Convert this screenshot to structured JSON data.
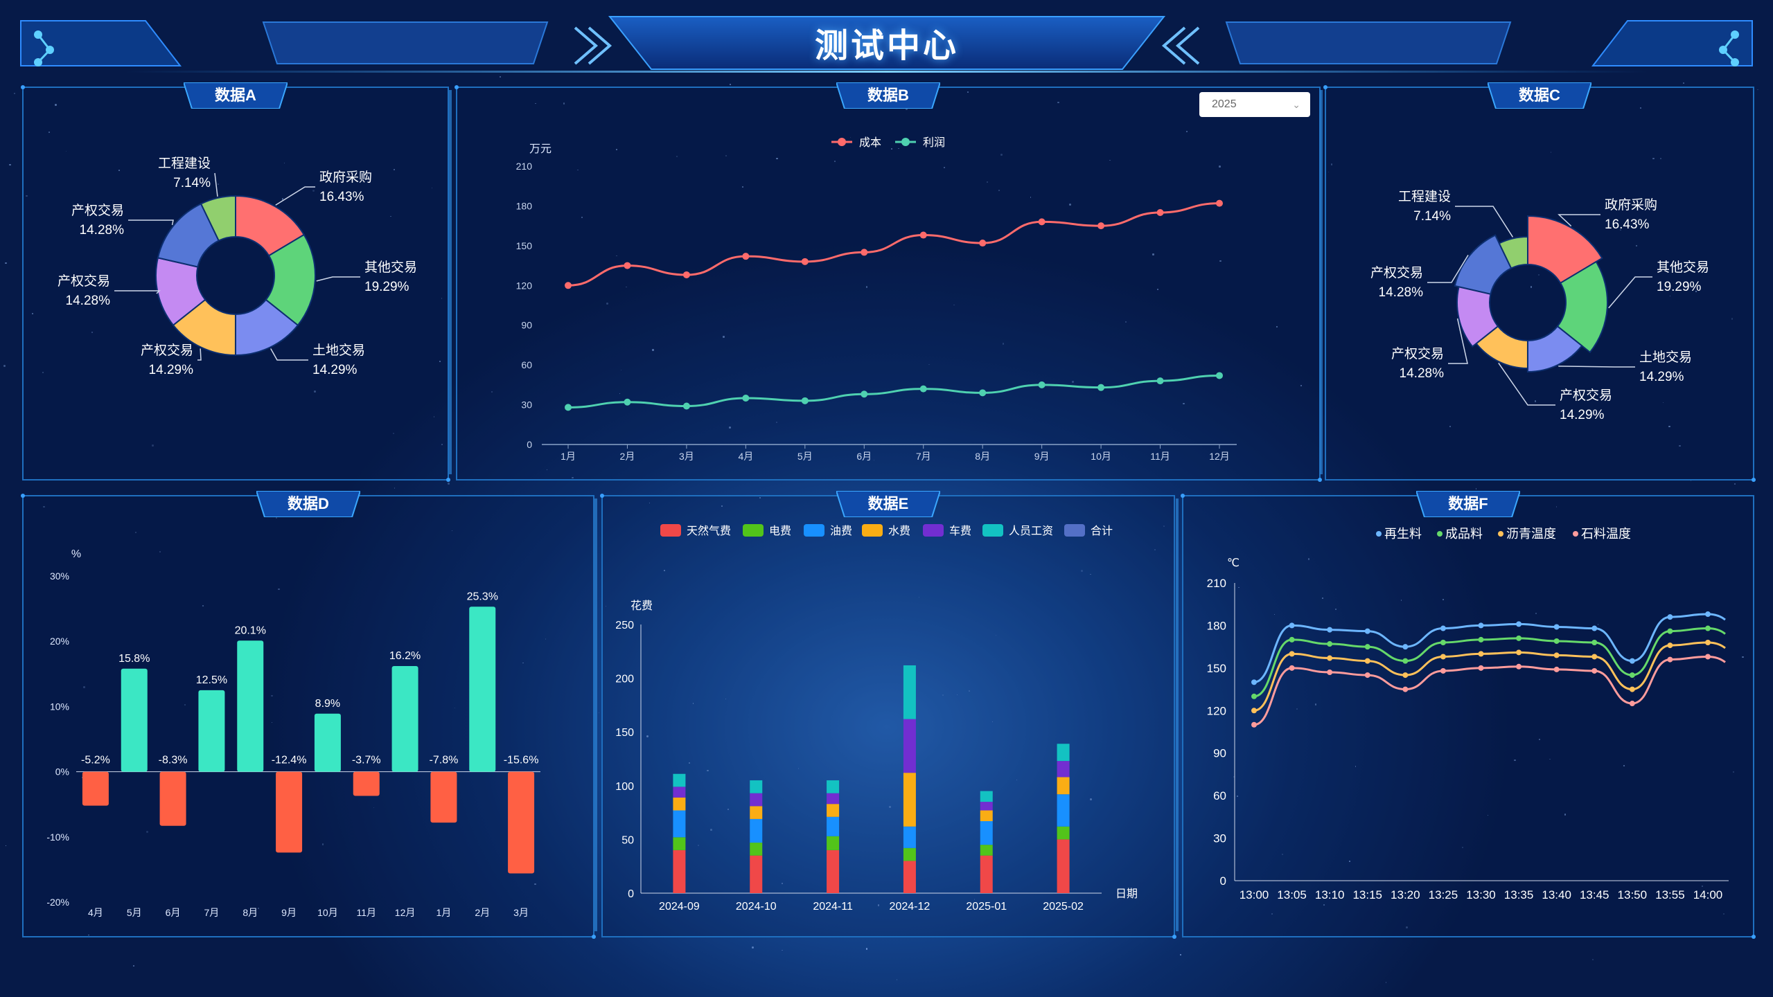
{
  "header": {
    "title": "测试中心"
  },
  "panels": {
    "a": "数据A",
    "b": "数据B",
    "c": "数据C",
    "d": "数据D",
    "e": "数据E",
    "f": "数据F"
  },
  "year_select": {
    "value": "2025"
  },
  "colors": {
    "pie": [
      "#ff7070",
      "#5ed47a",
      "#7b8cf0",
      "#ffc15a",
      "#c48af2",
      "#5577d6",
      "#91cf6e"
    ],
    "cost": "#ff6b6b",
    "profit": "#4fd1b0",
    "positive": "#3be7c4",
    "negative": "#ff6044",
    "stack": [
      "#f04848",
      "#52c41a",
      "#1890ff",
      "#faad14",
      "#722ed1",
      "#13c2c2",
      "#5470c6"
    ],
    "lines": [
      "#6db6ff",
      "#66d96a",
      "#ffc15a",
      "#ff9c9c"
    ]
  },
  "chart_data": [
    {
      "id": "A",
      "type": "pie",
      "labels": [
        "政府采购",
        "其他交易",
        "土地交易",
        "产权交易",
        "产权交易",
        "产权交易",
        "工程建设"
      ],
      "values": [
        16.43,
        19.29,
        14.29,
        14.29,
        14.28,
        14.28,
        7.14
      ],
      "value_labels": [
        "16.43%",
        "19.29%",
        "14.29%",
        "14.29%",
        "14.28%",
        "14.28%",
        "7.14%"
      ]
    },
    {
      "id": "B",
      "type": "line",
      "categories": [
        "1月",
        "2月",
        "3月",
        "4月",
        "5月",
        "6月",
        "7月",
        "8月",
        "9月",
        "10月",
        "11月",
        "12月"
      ],
      "series": [
        {
          "name": "成本",
          "values": [
            120,
            135,
            128,
            142,
            138,
            145,
            158,
            152,
            168,
            165,
            175,
            182
          ]
        },
        {
          "name": "利润",
          "values": [
            28,
            32,
            29,
            35,
            33,
            38,
            42,
            39,
            45,
            43,
            48,
            52
          ]
        }
      ],
      "ylabel": "万元",
      "ylim": [
        0,
        210
      ],
      "yticks": [
        "0",
        "30",
        "60",
        "90",
        "120",
        "150",
        "180",
        "210"
      ]
    },
    {
      "id": "C",
      "type": "pie",
      "labels": [
        "政府采购",
        "其他交易",
        "土地交易",
        "产权交易",
        "产权交易",
        "产权交易",
        "工程建设"
      ],
      "values": [
        16.43,
        19.29,
        14.29,
        14.29,
        14.28,
        14.28,
        7.14
      ],
      "value_labels": [
        "16.43%",
        "19.29%",
        "14.29%",
        "14.29%",
        "14.28%",
        "14.28%",
        "7.14%"
      ]
    },
    {
      "id": "D",
      "type": "bar",
      "categories": [
        "4月",
        "5月",
        "6月",
        "7月",
        "8月",
        "9月",
        "10月",
        "11月",
        "12月",
        "1月",
        "2月",
        "3月"
      ],
      "values": [
        -5.2,
        15.8,
        -8.3,
        12.5,
        20.1,
        -12.4,
        8.9,
        -3.7,
        16.2,
        -7.8,
        25.3,
        -15.6
      ],
      "value_labels": [
        "-5.2%",
        "15.8%",
        "-8.3%",
        "12.5%",
        "20.1%",
        "-12.4%",
        "8.9%",
        "-3.7%",
        "16.2%",
        "-7.8%",
        "25.3%",
        "-15.6%"
      ],
      "ylabel": "%",
      "ylim": [
        -20,
        30
      ],
      "yticks": [
        "-20%",
        "-10%",
        "0%",
        "10%",
        "20%",
        "30%"
      ]
    },
    {
      "id": "E",
      "type": "bar",
      "categories": [
        "2024-09",
        "2024-10",
        "2024-11",
        "2024-12",
        "2025-01",
        "2025-02"
      ],
      "series": [
        {
          "name": "天然气费",
          "values": [
            40,
            35,
            40,
            30,
            35,
            50
          ]
        },
        {
          "name": "电费",
          "values": [
            12,
            12,
            13,
            12,
            10,
            12
          ]
        },
        {
          "name": "油费",
          "values": [
            25,
            22,
            18,
            20,
            22,
            30
          ]
        },
        {
          "name": "水费",
          "values": [
            12,
            12,
            12,
            50,
            10,
            16
          ]
        },
        {
          "name": "车费",
          "values": [
            10,
            12,
            10,
            50,
            8,
            15
          ]
        },
        {
          "name": "人员工资",
          "values": [
            12,
            12,
            12,
            50,
            10,
            16
          ]
        },
        {
          "name": "合计",
          "values": [
            0,
            0,
            0,
            0,
            0,
            0
          ]
        }
      ],
      "ylabel": "花费",
      "xlabel": "日期",
      "ylim": [
        0,
        250
      ],
      "yticks": [
        "0",
        "50",
        "100",
        "150",
        "200",
        "250"
      ]
    },
    {
      "id": "F",
      "type": "line",
      "categories": [
        "13:00",
        "13:05",
        "13:10",
        "13:15",
        "13:20",
        "13:25",
        "13:30",
        "13:35",
        "13:40",
        "13:45",
        "13:50",
        "13:55",
        "14:00"
      ],
      "series": [
        {
          "name": "再生料",
          "values": [
            140,
            180,
            177,
            176,
            165,
            178,
            180,
            181,
            179,
            178,
            155,
            186,
            188
          ]
        },
        {
          "name": "成品料",
          "values": [
            130,
            170,
            167,
            165,
            155,
            168,
            170,
            171,
            169,
            168,
            145,
            176,
            178
          ]
        },
        {
          "name": "沥青温度",
          "values": [
            120,
            160,
            157,
            155,
            145,
            158,
            160,
            161,
            159,
            158,
            135,
            166,
            168
          ]
        },
        {
          "name": "石料温度",
          "values": [
            110,
            150,
            147,
            145,
            135,
            148,
            150,
            151,
            149,
            148,
            125,
            156,
            158
          ]
        }
      ],
      "ylabel": "℃",
      "ylim": [
        0,
        210
      ],
      "yticks": [
        "0",
        "30",
        "60",
        "90",
        "120",
        "150",
        "180",
        "210"
      ]
    }
  ]
}
